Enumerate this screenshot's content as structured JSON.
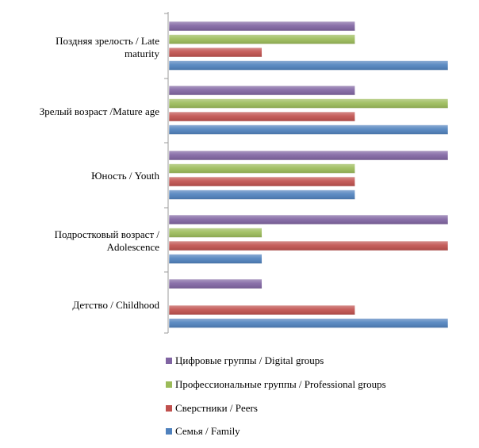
{
  "chart_data": {
    "type": "bar",
    "orientation": "horizontal",
    "categories": [
      [
        "Поздняя зрелость / Late",
        "maturity"
      ],
      [
        "Зрелый возраст /Mature age"
      ],
      [
        "Юность / Youth"
      ],
      [
        "Подростковый возраст /",
        "Adolescence"
      ],
      [
        "Детство / Childhood"
      ]
    ],
    "series": [
      {
        "name": "Цифровые группы / Digital groups",
        "color": "#8064A2",
        "values": [
          2,
          2,
          3,
          3,
          1
        ]
      },
      {
        "name": "Профессиональные группы / Professional groups",
        "color": "#9BBB59",
        "values": [
          2,
          3,
          2,
          1,
          0
        ]
      },
      {
        "name": "Сверстники / Peers",
        "color": "#C0504D",
        "values": [
          1,
          2,
          2,
          3,
          2
        ]
      },
      {
        "name": "Семья / Family",
        "color": "#4F81BD",
        "values": [
          3,
          3,
          2,
          1,
          3
        ]
      }
    ],
    "xlim": [
      0,
      3
    ],
    "grid": false,
    "legend_position": "bottom",
    "title": "",
    "xlabel": "",
    "ylabel": ""
  }
}
